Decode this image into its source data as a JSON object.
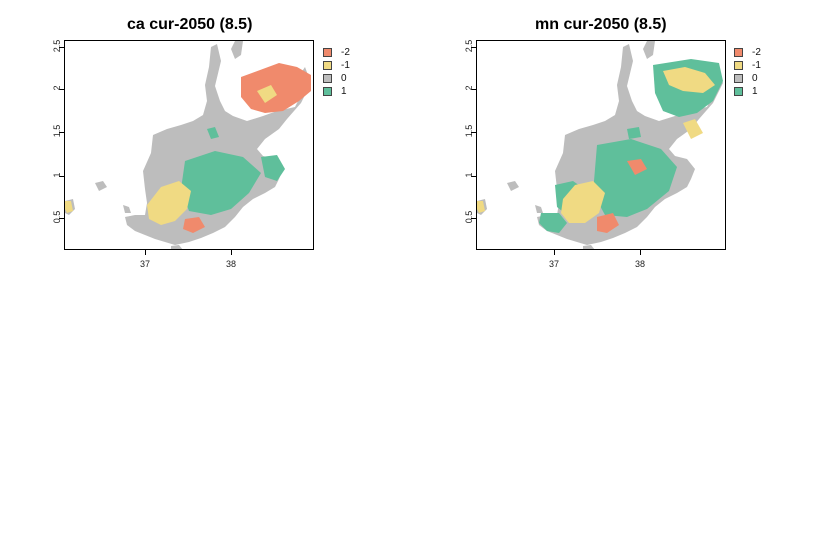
{
  "colors": {
    "-2": "#f08a6c",
    "-1": "#f0da83",
    "0": "#bdbdbd",
    "1": "#5fbf9b"
  },
  "legend": [
    {
      "label": "-2",
      "key": "-2"
    },
    {
      "label": "-1",
      "key": "-1"
    },
    {
      "label": "0",
      "key": "0"
    },
    {
      "label": "1",
      "key": "1"
    }
  ],
  "panels": [
    {
      "title": "ca cur-2050 (8.5)",
      "yticks": [
        "0.5",
        "1",
        "1.5",
        "2",
        "2.5"
      ],
      "xticks": [
        "37",
        "38"
      ]
    },
    {
      "title": "mn cur-2050 (8.5)",
      "yticks": [
        "0.5",
        "1",
        "1.5",
        "2",
        "2.5"
      ],
      "xticks": [
        "37",
        "38"
      ]
    }
  ]
}
